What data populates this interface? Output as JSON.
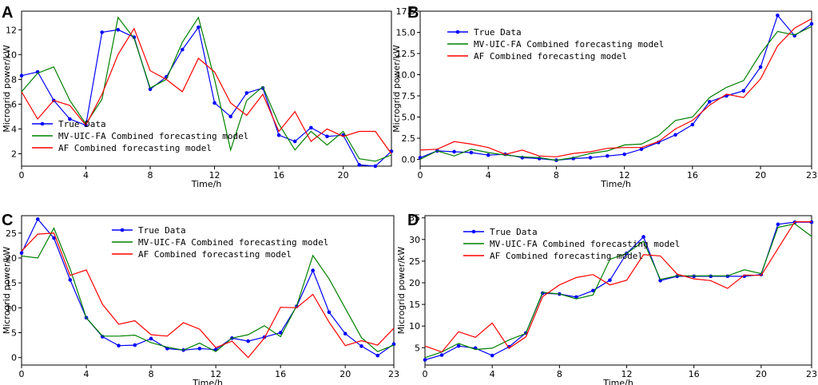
{
  "chart_data": [
    {
      "type": "line",
      "panel": "A",
      "xlabel": "Time/h",
      "ylabel": "Microgrid power/kW",
      "xlim": [
        0,
        23
      ],
      "ylim": [
        1,
        13.5
      ],
      "xticks": [
        0,
        4,
        8,
        12,
        16,
        20
      ],
      "yticks": [
        2,
        4,
        6,
        8,
        10,
        12
      ],
      "legend_position": "bottom-left",
      "x": [
        0,
        1,
        2,
        3,
        4,
        5,
        6,
        7,
        8,
        9,
        10,
        11,
        12,
        13,
        14,
        15,
        16,
        17,
        18,
        19,
        20,
        21,
        22,
        23
      ],
      "series": [
        {
          "name": "True Data",
          "color": "#0000ff",
          "markers": true,
          "values": [
            8.3,
            8.6,
            6.3,
            4.8,
            4.3,
            11.8,
            12.0,
            11.4,
            7.2,
            8.2,
            10.4,
            12.2,
            6.1,
            5.0,
            6.9,
            7.3,
            3.5,
            3.0,
            4.1,
            3.4,
            3.5,
            1.1,
            1.0,
            2.2
          ]
        },
        {
          "name": "MV-UIC-FA Combined forecasting model",
          "color": "#008000",
          "markers": false,
          "values": [
            7.0,
            8.5,
            9.0,
            6.3,
            4.4,
            6.4,
            13.0,
            11.3,
            7.3,
            8.0,
            11.0,
            13.0,
            8.0,
            2.3,
            6.3,
            7.4,
            4.4,
            2.3,
            3.8,
            2.7,
            3.8,
            1.6,
            1.4,
            1.9
          ]
        },
        {
          "name": "AF Combined forecasting model",
          "color": "#ff0000",
          "markers": false,
          "values": [
            7.0,
            4.8,
            6.3,
            5.9,
            4.3,
            6.8,
            10.0,
            12.1,
            8.7,
            8.0,
            7.0,
            9.7,
            8.6,
            6.1,
            5.1,
            6.8,
            3.8,
            5.4,
            3.0,
            4.0,
            3.4,
            3.8,
            3.8,
            2.0
          ]
        }
      ]
    },
    {
      "type": "line",
      "panel": "B",
      "xlabel": "Time/h",
      "ylabel": "Microgrid power/kW",
      "xlim": [
        0,
        23
      ],
      "ylim": [
        -0.8,
        17.5
      ],
      "xticks": [
        0,
        4,
        8,
        12,
        16,
        20,
        23
      ],
      "yticks": [
        0.0,
        2.5,
        5.0,
        7.5,
        10.0,
        12.5,
        15.0,
        17.5
      ],
      "ytick_labels": [
        "0.0",
        "2.5",
        "5.0",
        "7.5",
        "10.0",
        "12.5",
        "15.0",
        "17.5"
      ],
      "legend_position": "top-left",
      "x": [
        0,
        1,
        2,
        3,
        4,
        5,
        6,
        7,
        8,
        9,
        10,
        11,
        12,
        13,
        14,
        15,
        16,
        17,
        18,
        19,
        20,
        21,
        22,
        23
      ],
      "series": [
        {
          "name": "True Data",
          "color": "#0000ff",
          "markers": true,
          "values": [
            0.2,
            1.0,
            0.9,
            0.8,
            0.5,
            0.6,
            0.2,
            0.1,
            -0.1,
            0.1,
            0.2,
            0.4,
            0.6,
            1.2,
            2.0,
            2.9,
            4.1,
            6.8,
            7.5,
            8.1,
            10.9,
            17.0,
            14.6,
            16.0
          ]
        },
        {
          "name": "MV-UIC-FA Combined forecasting model",
          "color": "#008000",
          "markers": false,
          "values": [
            0.0,
            1.0,
            0.4,
            1.2,
            0.8,
            0.5,
            0.3,
            0.2,
            -0.1,
            0.2,
            0.7,
            1.0,
            1.7,
            1.8,
            2.8,
            4.6,
            5.0,
            7.3,
            8.5,
            9.3,
            12.5,
            15.1,
            14.7,
            15.7
          ]
        },
        {
          "name": "AF Combined forecasting model",
          "color": "#ff0000",
          "markers": false,
          "values": [
            1.1,
            1.2,
            2.1,
            1.8,
            1.4,
            0.6,
            1.1,
            0.4,
            0.3,
            0.7,
            0.9,
            1.3,
            1.4,
            1.4,
            2.1,
            3.6,
            4.6,
            6.4,
            7.7,
            7.3,
            9.5,
            13.4,
            15.5,
            16.6
          ]
        }
      ]
    },
    {
      "type": "line",
      "panel": "C",
      "xlabel": "Time/h",
      "ylabel": "Microgrid power/kW",
      "xlim": [
        0,
        23
      ],
      "ylim": [
        -1.5,
        28.5
      ],
      "xticks": [
        0,
        4,
        8,
        12,
        16,
        20,
        23
      ],
      "yticks": [
        0,
        5,
        10,
        15,
        20,
        25
      ],
      "legend_position": "top-center",
      "x": [
        0,
        1,
        2,
        3,
        4,
        5,
        6,
        7,
        8,
        9,
        10,
        11,
        12,
        13,
        14,
        15,
        16,
        17,
        18,
        19,
        20,
        21,
        22,
        23
      ],
      "series": [
        {
          "name": "True Data",
          "color": "#0000ff",
          "markers": true,
          "values": [
            21.0,
            27.8,
            24.0,
            15.6,
            8.0,
            4.2,
            2.4,
            2.5,
            3.8,
            1.8,
            1.5,
            1.8,
            1.6,
            3.9,
            3.3,
            4.1,
            5.0,
            10.3,
            17.5,
            9.1,
            4.8,
            2.3,
            0.4,
            2.7
          ]
        },
        {
          "name": "MV-UIC-FA Combined forecasting model",
          "color": "#008000",
          "markers": false,
          "values": [
            20.4,
            20.0,
            26.0,
            17.8,
            8.0,
            4.3,
            4.3,
            4.5,
            3.0,
            2.1,
            1.5,
            2.9,
            1.2,
            3.9,
            4.6,
            6.4,
            4.2,
            10.4,
            20.5,
            15.8,
            9.9,
            4.0,
            1.2,
            2.5
          ]
        },
        {
          "name": "AF Combined forecasting model",
          "color": "#ff0000",
          "markers": false,
          "values": [
            21.4,
            24.8,
            25.0,
            16.5,
            17.6,
            10.7,
            6.7,
            7.4,
            4.6,
            4.3,
            7.0,
            5.7,
            2.0,
            3.3,
            0.0,
            3.9,
            10.1,
            10.0,
            12.7,
            7.1,
            2.4,
            3.4,
            2.5,
            5.9
          ]
        }
      ]
    },
    {
      "type": "line",
      "panel": "D",
      "xlabel": "Time/h",
      "ylabel": "Microgrid power/kW",
      "xlim": [
        0,
        23
      ],
      "ylim": [
        1,
        35.5
      ],
      "xticks": [
        0,
        4,
        8,
        12,
        16,
        20,
        23
      ],
      "yticks": [
        5,
        10,
        15,
        20,
        25,
        30,
        35
      ],
      "legend_position": "top-left",
      "x": [
        0,
        1,
        2,
        3,
        4,
        5,
        6,
        7,
        8,
        9,
        10,
        11,
        12,
        13,
        14,
        15,
        16,
        17,
        18,
        19,
        20,
        21,
        22,
        23
      ],
      "series": [
        {
          "name": "True Data",
          "color": "#0000ff",
          "markers": true,
          "values": [
            2.2,
            3.3,
            5.4,
            4.9,
            3.2,
            5.2,
            8.4,
            17.6,
            17.4,
            16.7,
            18.2,
            20.6,
            26.8,
            30.6,
            20.5,
            21.5,
            21.5,
            21.5,
            21.5,
            21.5,
            21.9,
            33.5,
            34.0,
            34.0
          ]
        },
        {
          "name": "MV-UIC-FA Combined forecasting model",
          "color": "#008000",
          "markers": false,
          "values": [
            2.7,
            4.0,
            6.0,
            4.6,
            4.9,
            6.8,
            8.3,
            17.8,
            17.4,
            16.3,
            17.2,
            25.4,
            26.8,
            29.6,
            20.8,
            21.6,
            21.6,
            21.6,
            21.6,
            23.0,
            22.1,
            32.8,
            33.6,
            30.7
          ]
        },
        {
          "name": "AF Combined forecasting model",
          "color": "#ff0000",
          "markers": false,
          "values": [
            5.4,
            4.0,
            8.7,
            7.4,
            10.7,
            4.9,
            7.5,
            16.8,
            19.5,
            21.2,
            21.9,
            19.5,
            20.6,
            26.5,
            26.2,
            22.0,
            20.9,
            20.5,
            18.7,
            21.8,
            21.7,
            27.9,
            34.1,
            34.1
          ]
        }
      ]
    }
  ]
}
